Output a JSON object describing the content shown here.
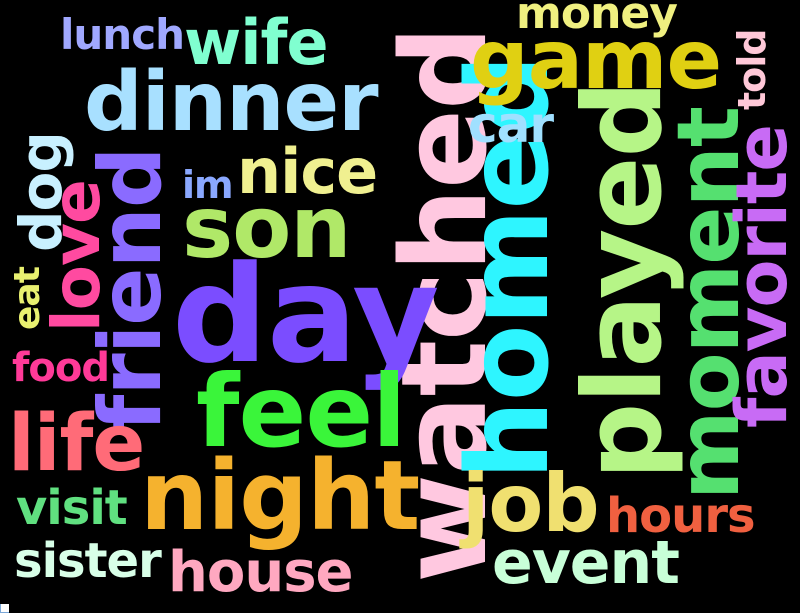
{
  "words": [
    {
      "text": "watched",
      "color": "#ffc8e0"
    },
    {
      "text": "day",
      "color": "#7b4dff"
    },
    {
      "text": "homed",
      "color": "#2ef5ff"
    },
    {
      "text": "played",
      "color": "#b6f587"
    },
    {
      "text": "night",
      "color": "#f5b22e"
    },
    {
      "text": "feel",
      "color": "#3af53a"
    },
    {
      "text": "dinner",
      "color": "#a8e0ff"
    },
    {
      "text": "son",
      "color": "#b0e868"
    },
    {
      "text": "friend",
      "color": "#8a6bff"
    },
    {
      "text": "moment",
      "color": "#55e070"
    },
    {
      "text": "game",
      "color": "#e0d012"
    },
    {
      "text": "job",
      "color": "#f0e070"
    },
    {
      "text": "life",
      "color": "#ff6b78"
    },
    {
      "text": "favorite",
      "color": "#c86bf5"
    },
    {
      "text": "wife",
      "color": "#80ffd0"
    },
    {
      "text": "nice",
      "color": "#f0f090"
    },
    {
      "text": "house",
      "color": "#ffa8c0"
    },
    {
      "text": "event",
      "color": "#c8ffd8"
    },
    {
      "text": "love",
      "color": "#ff4aa0"
    },
    {
      "text": "dog",
      "color": "#c8f0ff"
    },
    {
      "text": "hours",
      "color": "#f06040"
    },
    {
      "text": "money",
      "color": "#f0f080"
    },
    {
      "text": "sister",
      "color": "#d8ffe8"
    },
    {
      "text": "visit",
      "color": "#60e080"
    },
    {
      "text": "car",
      "color": "#a0e0ff"
    },
    {
      "text": "lunch",
      "color": "#a0a8ff"
    },
    {
      "text": "food",
      "color": "#ff3a98"
    },
    {
      "text": "told",
      "color": "#ffc8d8"
    },
    {
      "text": "eat",
      "color": "#e8f070"
    },
    {
      "text": "im",
      "color": "#8aa8ff"
    }
  ]
}
